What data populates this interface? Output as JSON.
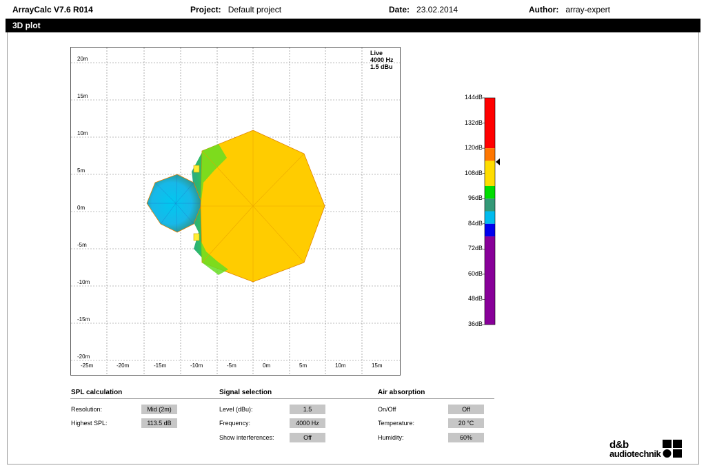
{
  "header": {
    "app_title": "ArrayCalc V7.6 R014",
    "project_label": "Project:",
    "project_value": "Default project",
    "date_label": "Date:",
    "date_value": "23.02.2014",
    "author_label": "Author:",
    "author_value": "array-expert"
  },
  "section": {
    "title": "3D plot"
  },
  "plot": {
    "info_line1": "Live",
    "info_line2": "4000 Hz",
    "info_line3": "1.5 dBu",
    "y_labels": [
      "20m",
      "15m",
      "10m",
      "5m",
      "0m",
      "-5m",
      "-10m",
      "-15m",
      "-20m"
    ],
    "x_labels": [
      "-25m",
      "-20m",
      "-15m",
      "-10m",
      "-5m",
      "0m",
      "5m",
      "10m",
      "15m"
    ],
    "colors": {
      "main_zone": "#FFCC00",
      "outline": "#E08000",
      "green": "#33DD00",
      "teal": "#33AA77",
      "cyan": "#00BBEE",
      "blue": "#0000EE",
      "grid": "#7a7a7a"
    }
  },
  "scale": {
    "labels": [
      "144dB",
      "132dB",
      "120dB",
      "108dB",
      "96dB",
      "84dB",
      "72dB",
      "60dB",
      "48dB",
      "36dB"
    ],
    "bands": [
      {
        "from": 144,
        "to": 120,
        "color": "#FF0000"
      },
      {
        "from": 120,
        "to": 114,
        "color": "#FF7700"
      },
      {
        "from": 114,
        "to": 102,
        "color": "#FFDD00"
      },
      {
        "from": 102,
        "to": 96,
        "color": "#00DD00"
      },
      {
        "from": 96,
        "to": 90,
        "color": "#339977"
      },
      {
        "from": 90,
        "to": 84,
        "color": "#00BBEE"
      },
      {
        "from": 84,
        "to": 78,
        "color": "#0000EE"
      },
      {
        "from": 78,
        "to": 36,
        "color": "#880099"
      }
    ],
    "marker_value": 113.5,
    "marker_icon": "triangle-left-icon"
  },
  "spl": {
    "title": "SPL calculation",
    "resolution_label": "Resolution:",
    "resolution_value": "Mid (2m)",
    "highest_label": "Highest SPL:",
    "highest_value": "113.5 dB"
  },
  "signal": {
    "title": "Signal selection",
    "level_label": "Level (dBu):",
    "level_value": "1.5",
    "frequency_label": "Frequency:",
    "frequency_value": "4000 Hz",
    "interference_label": "Show interferences:",
    "interference_value": "Off"
  },
  "air": {
    "title": "Air absorption",
    "onoff_label": "On/Off",
    "onoff_value": "Off",
    "temperature_label": "Temperature:",
    "temperature_value": "20 °C",
    "humidity_label": "Humidity:",
    "humidity_value": "60%"
  },
  "logo": {
    "line1": "d&b",
    "line2": "audiotechnik"
  }
}
